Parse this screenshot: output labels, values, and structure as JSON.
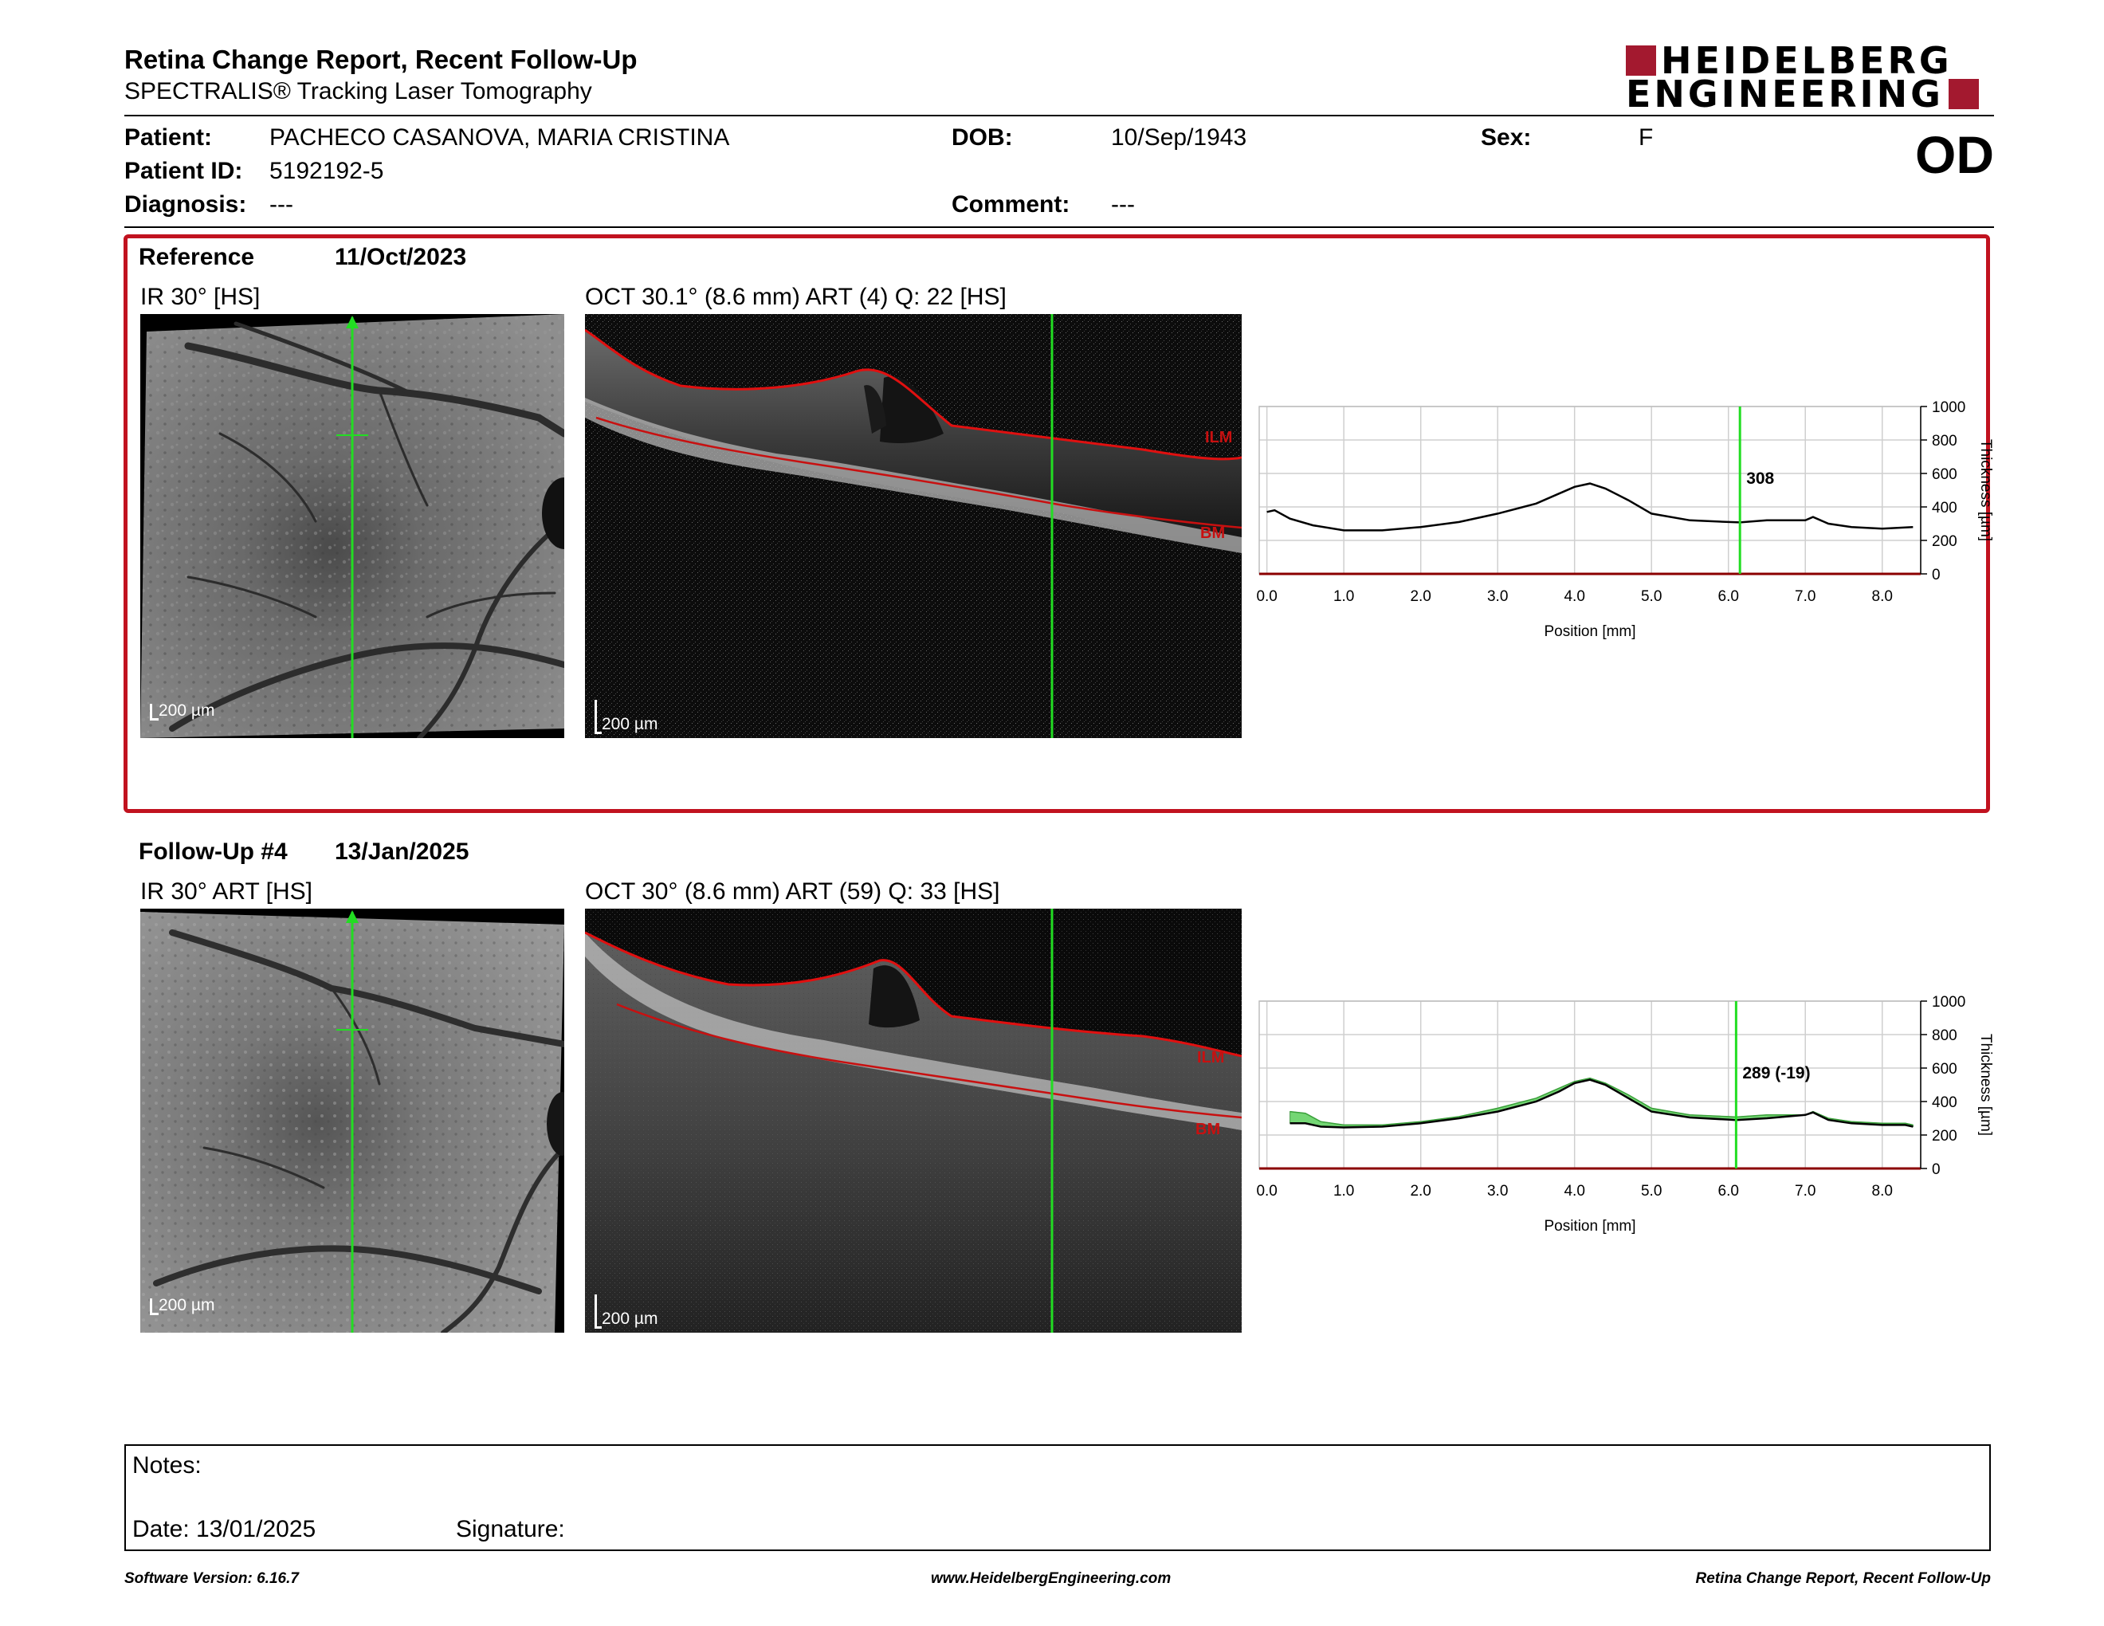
{
  "header": {
    "title": "Retina Change Report, Recent Follow-Up",
    "subtitle": "SPECTRALIS® Tracking Laser Tomography",
    "logo_line1": "HEIDELBERG",
    "logo_line2": "ENGINEERING"
  },
  "patient": {
    "patient_label": "Patient:",
    "patient_value": "PACHECO CASANOVA, MARIA CRISTINA",
    "dob_label": "DOB:",
    "dob_value": "10/Sep/1943",
    "sex_label": "Sex:",
    "sex_value": "F",
    "id_label": "Patient ID:",
    "id_value": "5192192-5",
    "diagnosis_label": "Diagnosis:",
    "diagnosis_value": "---",
    "comment_label": "Comment:",
    "comment_value": "---",
    "eye": "OD"
  },
  "reference": {
    "label": "Reference",
    "date": "11/Oct/2023",
    "ir_title": "IR 30° [HS]",
    "oct_title": "OCT 30.1° (8.6 mm) ART (4) Q: 22 [HS]",
    "scale_ir": "200 µm",
    "scale_oct": "200 µm",
    "ilm": "ILM",
    "bm": "BM"
  },
  "followup": {
    "label": "Follow-Up #4",
    "date": "13/Jan/2025",
    "ir_title": "IR 30° ART [HS]",
    "oct_title": "OCT 30° (8.6 mm) ART (59) Q: 33 [HS]",
    "scale_ir": "200 µm",
    "scale_oct": "200 µm",
    "ilm": "ILM",
    "bm": "BM"
  },
  "chart_data": [
    {
      "type": "line",
      "xlabel": "Position [mm]",
      "ylabel": "Thickness [µm]",
      "xlim": [
        -0.1,
        8.5
      ],
      "ylim": [
        0,
        1000
      ],
      "xticks": [
        "0.0",
        "1.0",
        "2.0",
        "3.0",
        "4.0",
        "5.0",
        "6.0",
        "7.0",
        "8.0"
      ],
      "yticks": [
        "0",
        "200",
        "400",
        "600",
        "800",
        "1000"
      ],
      "grid": true,
      "marker_x": 6.15,
      "marker_label": "308",
      "series": [
        {
          "x": [
            0.0,
            0.1,
            0.3,
            0.6,
            1.0,
            1.5,
            2.0,
            2.5,
            3.0,
            3.5,
            3.8,
            4.0,
            4.2,
            4.4,
            4.7,
            5.0,
            5.5,
            6.0,
            6.15,
            6.5,
            7.0,
            7.1,
            7.3,
            7.6,
            8.0,
            8.4
          ],
          "values": [
            370,
            380,
            330,
            290,
            260,
            260,
            280,
            310,
            360,
            420,
            480,
            520,
            540,
            510,
            440,
            360,
            320,
            310,
            308,
            320,
            320,
            340,
            300,
            280,
            270,
            280
          ]
        }
      ]
    },
    {
      "type": "area",
      "xlabel": "Position [mm]",
      "ylabel": "Thickness [µm]",
      "xlim": [
        -0.1,
        8.5
      ],
      "ylim": [
        0,
        1000
      ],
      "xticks": [
        "0.0",
        "1.0",
        "2.0",
        "3.0",
        "4.0",
        "5.0",
        "6.0",
        "7.0",
        "8.0"
      ],
      "yticks": [
        "0",
        "200",
        "400",
        "600",
        "800",
        "1000"
      ],
      "grid": true,
      "marker_x": 6.1,
      "marker_label": "289 (-19)",
      "series": [
        {
          "x": [
            0.3,
            0.5,
            0.7,
            1.0,
            1.5,
            2.0,
            2.5,
            3.0,
            3.5,
            3.8,
            4.0,
            4.2,
            4.4,
            4.7,
            5.0,
            5.5,
            6.0,
            6.1,
            6.5,
            7.0,
            7.1,
            7.3,
            7.6,
            8.0,
            8.3,
            8.4
          ],
          "values": [
            270,
            270,
            250,
            245,
            250,
            270,
            300,
            340,
            400,
            460,
            510,
            530,
            500,
            420,
            340,
            305,
            292,
            289,
            300,
            320,
            335,
            290,
            270,
            260,
            260,
            250
          ]
        },
        {
          "x": [
            0.3,
            0.5,
            0.7,
            1.0,
            1.5,
            2.0,
            2.5,
            3.0,
            3.5,
            3.8,
            4.0,
            4.2,
            4.4,
            4.7,
            5.0,
            5.5,
            6.0,
            6.1,
            6.5,
            7.0,
            7.1,
            7.3,
            7.6,
            8.0,
            8.3,
            8.4
          ],
          "values": [
            340,
            330,
            280,
            260,
            260,
            280,
            310,
            360,
            420,
            480,
            520,
            540,
            510,
            440,
            360,
            320,
            310,
            308,
            320,
            320,
            340,
            300,
            280,
            270,
            270,
            260
          ]
        }
      ]
    }
  ],
  "notes": {
    "label": "Notes:",
    "date_label": "Date: 13/01/2025",
    "signature_label": "Signature:"
  },
  "footer": {
    "software": "Software Version: 6.16.7",
    "website": "www.HeidelbergEngineering.com",
    "report": "Retina Change Report, Recent Follow-Up"
  },
  "colors": {
    "accent_red": "#c1121f",
    "logo_red": "#a3192f",
    "marker_green": "#22dd22",
    "diff_fill": "#5ccf5c",
    "axis_line": "#8b0000"
  }
}
